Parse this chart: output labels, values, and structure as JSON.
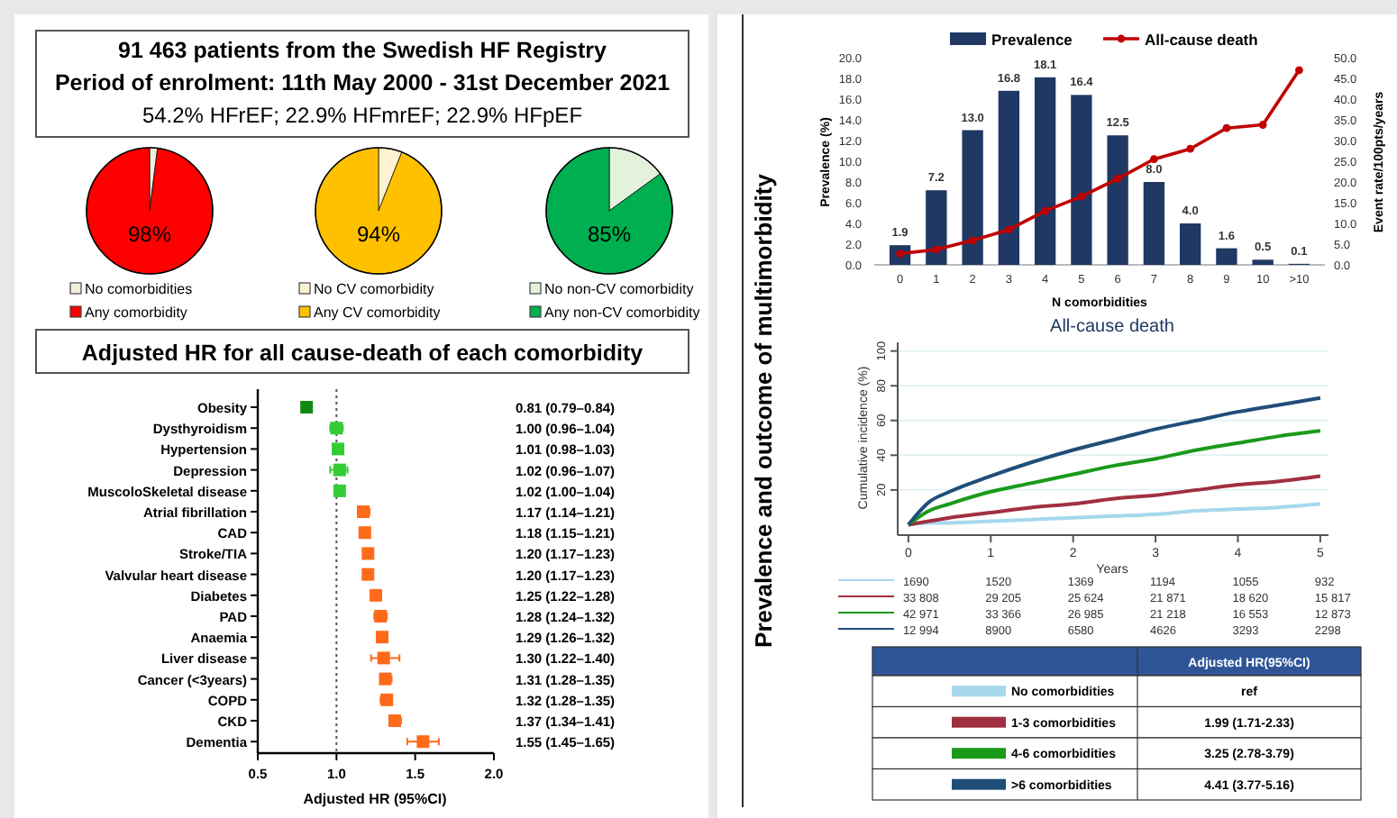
{
  "chart_data": [
    {
      "type": "other",
      "title": "91 463 patients from the Swedish HF Registry",
      "subtitle": "Period of enrolment: 11th May 2000 - 31st December 2021",
      "annotations": [
        "54.2% HFrEF; 22.9% HFmrEF; 22.9% HFpEF",
        "Prevalence and outcome of multimorbidity"
      ]
    },
    {
      "type": "pie",
      "categories": [
        "No comorbidities",
        "Any comorbidity"
      ],
      "values": [
        2,
        98
      ],
      "colors": [
        "#f3eedc",
        "#ff0000"
      ],
      "value_labels": [
        null,
        "98%"
      ],
      "legend": "bottom"
    },
    {
      "type": "pie",
      "categories": [
        "No CV comorbidity",
        "Any CV comorbidity"
      ],
      "values": [
        6,
        94
      ],
      "colors": [
        "#fdf3d2",
        "#ffc000"
      ],
      "value_labels": [
        null,
        "94%"
      ],
      "legend": "bottom"
    },
    {
      "type": "pie",
      "categories": [
        "No non-CV comorbidity",
        "Any non-CV comorbidity"
      ],
      "values": [
        15,
        85
      ],
      "colors": [
        "#e4f2dc",
        "#00b050"
      ],
      "value_labels": [
        null,
        "85%"
      ],
      "legend": "bottom"
    },
    {
      "type": "scatter",
      "orientation": "horizontal",
      "title": "Adjusted HR for all cause-death of each comorbidity",
      "xlabel": "Adjusted HR (95%CI)",
      "marker": "square",
      "categories": [
        "Obesity",
        "Dysthyroidism",
        "Hypertension",
        "Depression",
        "MuscoloSkeletal disease",
        "Atrial fibrillation",
        "CAD",
        "Stroke/TIA",
        "Valvular heart disease",
        "Diabetes",
        "PAD",
        "Anaemia",
        "Liver disease",
        "Cancer (<3years)",
        "COPD",
        "CKD",
        "Dementia"
      ],
      "values": [
        0.81,
        1.0,
        1.01,
        1.02,
        1.02,
        1.17,
        1.18,
        1.2,
        1.2,
        1.25,
        1.28,
        1.29,
        1.3,
        1.31,
        1.32,
        1.37,
        1.55
      ],
      "errors": [
        [
          0.79,
          0.84
        ],
        [
          0.96,
          1.04
        ],
        [
          0.98,
          1.03
        ],
        [
          0.96,
          1.07
        ],
        [
          1.0,
          1.04
        ],
        [
          1.14,
          1.21
        ],
        [
          1.15,
          1.21
        ],
        [
          1.17,
          1.23
        ],
        [
          1.17,
          1.23
        ],
        [
          1.22,
          1.28
        ],
        [
          1.24,
          1.32
        ],
        [
          1.26,
          1.32
        ],
        [
          1.22,
          1.4
        ],
        [
          1.28,
          1.35
        ],
        [
          1.28,
          1.35
        ],
        [
          1.34,
          1.41
        ],
        [
          1.45,
          1.65
        ]
      ],
      "colors": [
        "#128a12",
        "#33cc33",
        "#33cc33",
        "#33cc33",
        "#33cc33",
        "#ff6a1a",
        "#ff6a1a",
        "#ff6a1a",
        "#ff6a1a",
        "#ff6a1a",
        "#ff6a1a",
        "#ff6a1a",
        "#ff6a1a",
        "#ff6a1a",
        "#ff6a1a",
        "#ff6a1a",
        "#ff6a1a"
      ],
      "value_labels": [
        "0.81 (0.79–0.84)",
        "1.00 (0.96–1.04)",
        "1.01 (0.98–1.03)",
        "1.02 (0.96–1.07)",
        "1.02 (1.00–1.04)",
        "1.17 (1.14–1.21)",
        "1.18 (1.15–1.21)",
        "1.20 (1.17–1.23)",
        "1.20 (1.17–1.23)",
        "1.25 (1.22–1.28)",
        "1.28 (1.24–1.32)",
        "1.29 (1.26–1.32)",
        "1.30 (1.22–1.40)",
        "1.31 (1.28–1.35)",
        "1.32 (1.28–1.35)",
        "1.37 (1.34–1.41)",
        "1.55 (1.45–1.65)"
      ],
      "xlim": [
        0.5,
        2.0
      ],
      "xticks": [
        {
          "value": 0.5,
          "label": "0.5"
        },
        {
          "value": 1,
          "label": "1.0"
        },
        {
          "value": 1.5,
          "label": "1.5"
        },
        {
          "value": 2,
          "label": "2.0"
        }
      ],
      "ref_lines": [
        {
          "axis": "x",
          "value": 1,
          "line_style": "dotted"
        }
      ]
    },
    {
      "type": "bar",
      "xlabel": "N comorbidities",
      "ylabel": "Prevalence (%)",
      "y2label": "Event rate/100pts/years",
      "legend": "top",
      "marker": "circle",
      "categories": [
        "0",
        "1",
        "2",
        "3",
        "4",
        "5",
        "6",
        "7",
        "8",
        "9",
        "10",
        ">10"
      ],
      "series": [
        {
          "name": "Prevalence",
          "color": "#1f3864",
          "values": [
            1.9,
            7.2,
            13.0,
            16.8,
            18.1,
            16.4,
            12.5,
            8.0,
            4.0,
            1.6,
            0.5,
            0.1
          ],
          "value_labels": [
            "1.9",
            "7.2",
            "13.0",
            "16.8",
            "18.1",
            "16.4",
            "12.5",
            "8.0",
            "4.0",
            "1.6",
            "0.5",
            "0.1"
          ]
        },
        {
          "name": "All-cause death",
          "type": "line",
          "axis": "y2",
          "color": "#c00000",
          "values": [
            2.7,
            3.7,
            5.9,
            8.5,
            13.0,
            16.5,
            20.8,
            25.5,
            28.0,
            33.0,
            33.8,
            47.0
          ]
        }
      ],
      "ylim": [
        0,
        20
      ],
      "yticks": [
        {
          "value": 0,
          "label": "0.0"
        },
        {
          "value": 2,
          "label": "2.0"
        },
        {
          "value": 4,
          "label": "4.0"
        },
        {
          "value": 6,
          "label": "6.0"
        },
        {
          "value": 8,
          "label": "8.0"
        },
        {
          "value": 10,
          "label": "10.0"
        },
        {
          "value": 12,
          "label": "12.0"
        },
        {
          "value": 14,
          "label": "14.0"
        },
        {
          "value": 16,
          "label": "16.0"
        },
        {
          "value": 18,
          "label": "18.0"
        },
        {
          "value": 20,
          "label": "20.0"
        }
      ],
      "y2lim": [
        0,
        50
      ],
      "y2ticks": [
        {
          "value": 0,
          "label": "0.0"
        },
        {
          "value": 5,
          "label": "5.0"
        },
        {
          "value": 10,
          "label": "10.0"
        },
        {
          "value": 15,
          "label": "15.0"
        },
        {
          "value": 20,
          "label": "20.0"
        },
        {
          "value": 25,
          "label": "25.0"
        },
        {
          "value": 30,
          "label": "30.0"
        },
        {
          "value": 35,
          "label": "35.0"
        },
        {
          "value": 40,
          "label": "40.0"
        },
        {
          "value": 45,
          "label": "45.0"
        },
        {
          "value": 50,
          "label": "50.0"
        }
      ]
    },
    {
      "type": "line",
      "title": "All-cause death",
      "xlabel": "Years",
      "ylabel": "Cumulative incidence (%)",
      "grid": "y",
      "legend": "bottom",
      "x": [
        0,
        0.25,
        0.5,
        1,
        1.5,
        2,
        2.5,
        3,
        3.5,
        4,
        4.5,
        5
      ],
      "series": [
        {
          "name": "No comorbidities",
          "color": "#a6d8ee",
          "values": [
            0,
            1,
            1,
            2,
            3,
            4,
            5,
            6,
            8,
            9,
            10,
            12
          ]
        },
        {
          "name": "1-3 comorbidities",
          "color": "#a03040",
          "values": [
            0,
            2,
            4,
            7,
            10,
            12,
            15,
            17,
            20,
            23,
            25,
            28
          ]
        },
        {
          "name": "4-6 comorbidities",
          "color": "#1a9a1a",
          "values": [
            0,
            8,
            12,
            19,
            24,
            29,
            34,
            38,
            43,
            47,
            51,
            54
          ]
        },
        {
          "name": ">6 comorbidities",
          "color": "#1f4e79",
          "values": [
            0,
            13,
            19,
            28,
            36,
            43,
            49,
            55,
            60,
            65,
            69,
            73
          ]
        }
      ],
      "xlim": [
        -0.13,
        5.1
      ],
      "xticks": [
        0,
        1,
        2,
        3,
        4,
        5
      ],
      "ylim": [
        -6,
        105
      ],
      "yticks": [
        20,
        40,
        60,
        80,
        100
      ],
      "annotations": [
        "1690",
        "1520",
        "1369",
        "1194",
        "1055",
        "932",
        "33 808",
        "29 205",
        "25 624",
        "21 871",
        "18 620",
        "15 817",
        "42 971",
        "33 366",
        "26 985",
        "21 218",
        "16 553",
        "12 873",
        "12 994",
        "8900",
        "6580",
        "4626",
        "3293",
        "2298",
        "Adjusted HR(95%CI)",
        "ref",
        "1.99 (1.71-2.33)",
        "3.25 (2.78-3.79)",
        "4.41 (3.77-5.16)"
      ]
    }
  ]
}
